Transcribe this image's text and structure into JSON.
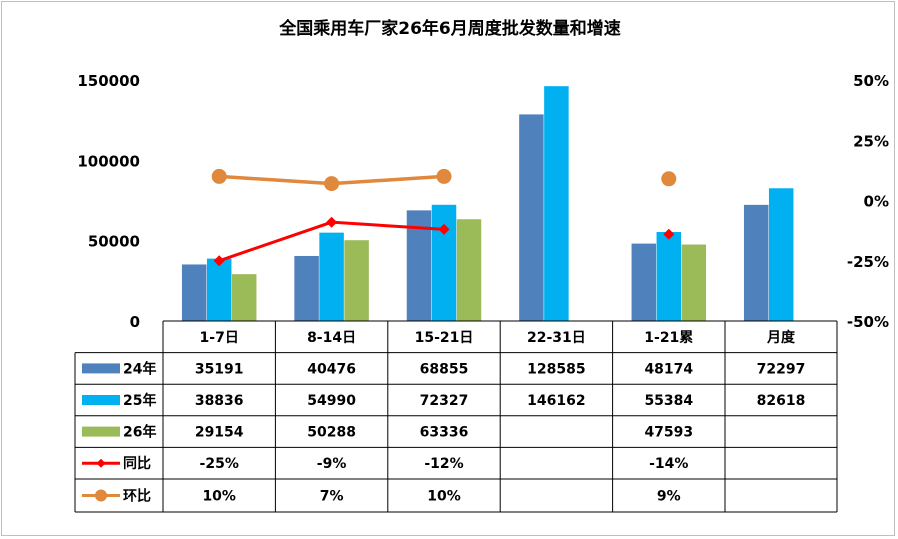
{
  "chart_data": {
    "type": "bar",
    "title": "全国乘用车厂家26年6月周度批发数量和增速",
    "categories": [
      "1-7日",
      "8-14日",
      "15-21日",
      "22-31日",
      "1-21累",
      "月度"
    ],
    "y_left": {
      "min": 0,
      "max": 150000,
      "ticks": [
        "0",
        "50000",
        "100000",
        "150000"
      ]
    },
    "y_right": {
      "min": -50,
      "max": 50,
      "ticks": [
        "-50%",
        "-25%",
        "0%",
        "25%",
        "50%"
      ]
    },
    "series": [
      {
        "name": "24年",
        "kind": "bar",
        "color": "#4f81bd",
        "values": [
          35191,
          40476,
          68855,
          128585,
          48174,
          72297
        ],
        "labels": [
          "35191",
          "40476",
          "68855",
          "128585",
          "48174",
          "72297"
        ]
      },
      {
        "name": "25年",
        "kind": "bar",
        "color": "#00b0f0",
        "values": [
          38836,
          54990,
          72327,
          146162,
          55384,
          82618
        ],
        "labels": [
          "38836",
          "54990",
          "72327",
          "146162",
          "55384",
          "82618"
        ]
      },
      {
        "name": "26年",
        "kind": "bar",
        "color": "#9bbb59",
        "values": [
          29154,
          50288,
          63336,
          null,
          47593,
          null
        ],
        "labels": [
          "29154",
          "50288",
          "63336",
          "",
          "47593",
          ""
        ]
      },
      {
        "name": "同比",
        "kind": "line",
        "color": "#ff0000",
        "marker": "diamond",
        "values": [
          -25,
          -9,
          -12,
          null,
          -14,
          null
        ],
        "labels": [
          "-25%",
          "-9%",
          "-12%",
          "",
          "-14%",
          ""
        ]
      },
      {
        "name": "环比",
        "kind": "line",
        "color": "#e0883c",
        "marker": "circle",
        "values": [
          10,
          7,
          10,
          null,
          9,
          null
        ],
        "labels": [
          "10%",
          "7%",
          "10%",
          "",
          "9%",
          ""
        ]
      }
    ]
  }
}
